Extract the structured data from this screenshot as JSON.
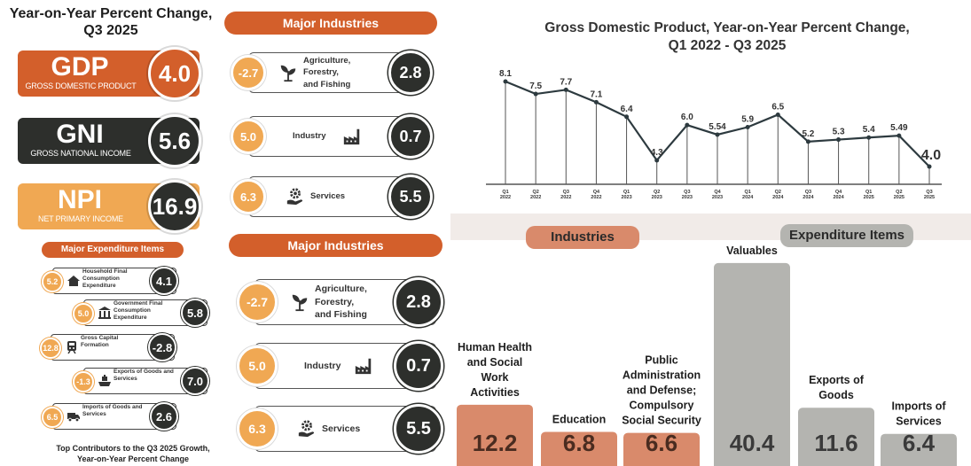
{
  "left": {
    "title": "Year-on-Year Percent Change, Q3 2025",
    "title_line1": "Year-on-Year Percent Change,",
    "title_line2": "Q3 2025",
    "cards": [
      {
        "abbr": "GDP",
        "full": "GROSS DOMESTIC PRODUCT",
        "value": "4.0",
        "color": "#d35f2b",
        "circle": "#d35f2b"
      },
      {
        "abbr": "GNI",
        "full": "GROSS NATIONAL INCOME",
        "value": "5.6",
        "color": "#2d2f2c",
        "circle": "#2d2f2c"
      },
      {
        "abbr": "NPI",
        "full": "NET PRIMARY INCOME",
        "value": "16.9",
        "color": "#f0a853",
        "circle": "#2d2f2c"
      }
    ],
    "exp_title": "Major Expenditure Items",
    "exp_items": [
      {
        "pct": "5.2",
        "label": "Household Final Consumption Expenditure",
        "value": "4.1",
        "icon": "house-icon"
      },
      {
        "pct": "5.0",
        "label": "Government Final Consumption Expenditure",
        "value": "5.8",
        "icon": "government-building-icon"
      },
      {
        "pct": "12.8",
        "label": "Gross Capital Formation",
        "value": "-2.8",
        "icon": "train-icon"
      },
      {
        "pct": "-1.3",
        "label": "Exports of Goods and Services",
        "value": "7.0",
        "icon": "ship-icon"
      },
      {
        "pct": "6.5",
        "label": "Imports of Goods and Services",
        "value": "2.6",
        "icon": "delivery-truck-icon"
      }
    ],
    "footer_line1": "Top Contributors to the Q3 2025 Growth,",
    "footer_line2": "Year-on-Year Percent Change"
  },
  "industries_panel": {
    "title": "Major Industries",
    "rows": [
      {
        "pct": "-2.7",
        "label_lines": [
          "Agriculture,",
          "Forestry,",
          "and Fishing"
        ],
        "value": "2.8",
        "icon": "plant-icon"
      },
      {
        "pct": "5.0",
        "label_lines": [
          "Industry"
        ],
        "value": "0.7",
        "icon": "factory-icon"
      },
      {
        "pct": "6.3",
        "label_lines": [
          "Services"
        ],
        "value": "5.5",
        "icon": "gear-hand-icon"
      }
    ]
  },
  "colors": {
    "orange": "#d35f2b",
    "amber": "#f0a853",
    "dark": "#2d2f2c",
    "salmon": "#d98a6b",
    "grey": "#b4b4b0"
  },
  "chart_data": [
    {
      "type": "line",
      "title": "Gross Domestic Product, Year-on-Year Percent Change, Q1 2022 - Q3 2025",
      "title_line1": "Gross Domestic Product, Year-on-Year Percent Change,",
      "title_line2": "Q1 2022 - Q3 2025",
      "categories": [
        "Q1 2022",
        "Q2 2022",
        "Q3 2022",
        "Q4 2022",
        "Q1 2023",
        "Q2 2023",
        "Q3 2023",
        "Q4 2023",
        "Q1 2024",
        "Q2 2024",
        "Q3 2024",
        "Q4 2024",
        "Q1 2025",
        "Q2 2025",
        "Q3 2025"
      ],
      "values": [
        8.1,
        7.5,
        7.7,
        7.1,
        6.4,
        4.3,
        6.0,
        5.54,
        5.9,
        6.5,
        5.2,
        5.3,
        5.4,
        5.49,
        4.0
      ],
      "value_labels": [
        "8.1",
        "7.5",
        "7.7",
        "7.1",
        "6.4",
        "4.3",
        "6.0",
        "5.54",
        "5.9",
        "6.5",
        "5.2",
        "5.3",
        "5.4",
        "5.49",
        "4.0"
      ]
    },
    {
      "type": "bar",
      "group_labels": [
        "Industries",
        "Expenditure Items"
      ],
      "categories": [
        "Human Health and Social Work Activities",
        "Education",
        "Public Administration and Defense; Compulsory Social Security",
        "Valuables",
        "Exports of Goods",
        "Imports of Services"
      ],
      "category_lines": [
        [
          "Human Health",
          "and Social",
          "Work",
          "Activities"
        ],
        [
          "Education"
        ],
        [
          "Public",
          "Administration",
          "and Defense;",
          "Compulsory",
          "Social Security"
        ],
        [
          "Valuables"
        ],
        [
          "Exports of",
          "Goods"
        ],
        [
          "Imports of",
          "Services"
        ]
      ],
      "groups": [
        "Industries",
        "Industries",
        "Industries",
        "Expenditure Items",
        "Expenditure Items",
        "Expenditure Items"
      ],
      "values": [
        12.2,
        6.8,
        6.6,
        40.4,
        11.6,
        6.4
      ],
      "value_labels": [
        "12.2",
        "6.8",
        "6.6",
        "40.4",
        "11.6",
        "6.4"
      ]
    }
  ]
}
